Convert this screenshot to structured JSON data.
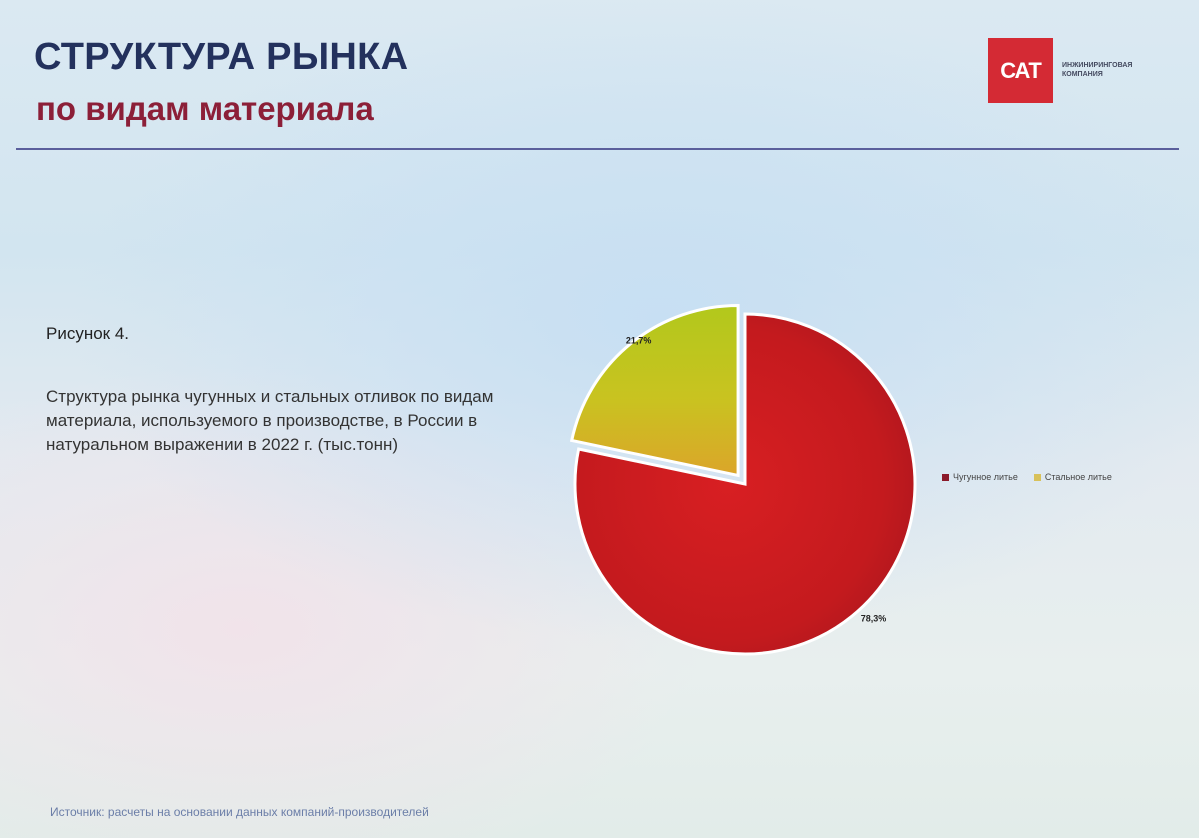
{
  "header": {
    "title_line1": "СТРУКТУРА РЫНКА",
    "title_line2": "по видам материала"
  },
  "logo": {
    "letters": "САТ",
    "caption_line1": "ИНЖИНИРИНГОВАЯ",
    "caption_line2": "КОМПАНИЯ"
  },
  "figure": {
    "label": "Рисунок 4.",
    "description": "Структура рынка чугунных и стальных отливок по видам материала, используемого в производстве, в России в натуральном выражении в 2022 г. (тыс.тонн)"
  },
  "source": "Источник: расчеты на основании данных компаний-производителей",
  "colors": {
    "title_dark": "#23315d",
    "title_accent": "#8c1f38",
    "brand_red": "#d42a34",
    "cast_iron": "#c41a1e",
    "steel": "#b5c21c"
  },
  "chart_data": {
    "type": "pie",
    "title": "",
    "legend_position": "right",
    "slices": [
      {
        "name": "Чугунное литье",
        "value": 78.3,
        "label": "78,3%",
        "color": "#c41a1e",
        "legend_color": "#8b1a2a",
        "exploded": false
      },
      {
        "name": "Стальное литье",
        "value": 21.7,
        "label": "21,7%",
        "color": "#b5c21c",
        "legend_color": "#d8c15a",
        "exploded": true
      }
    ]
  }
}
